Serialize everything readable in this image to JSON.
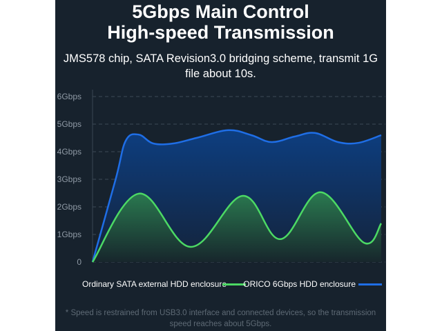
{
  "header": {
    "title_line1": "5Gbps Main Control",
    "title_line2": "High-speed Transmission",
    "subtitle": "JMS578 chip, SATA Revision3.0 bridging scheme, transmit 1G file about 10s."
  },
  "footnote": "* Speed is restrained from USB3.0 interface and connected devices, so the transmission speed reaches about 5Gbps.",
  "colors": {
    "background": "#17222d",
    "orico": "#1f6ee6",
    "ordinary": "#4cd964"
  },
  "chart_data": {
    "type": "area",
    "title": "",
    "xlabel": "",
    "ylabel": "",
    "ylim": [
      0,
      6
    ],
    "yticks": [
      {
        "value": 0,
        "label": "0"
      },
      {
        "value": 1,
        "label": "1Gbps"
      },
      {
        "value": 2,
        "label": "2Gbps"
      },
      {
        "value": 3,
        "label": "3Gbps"
      },
      {
        "value": 4,
        "label": "4Gbps"
      },
      {
        "value": 5,
        "label": "5Gbps"
      },
      {
        "value": 6,
        "label": "6Gbps"
      }
    ],
    "xlim": [
      0,
      100
    ],
    "grid": true,
    "legend_position": "bottom-right",
    "series": [
      {
        "name": "ORICO 6Gbps HDD enclosure",
        "color": "#1f6ee6",
        "x": [
          0,
          8,
          11.5,
          16,
          21,
          28,
          36,
          47,
          55,
          62,
          70,
          77,
          85,
          92,
          100
        ],
        "y": [
          0,
          3.0,
          4.4,
          4.62,
          4.3,
          4.3,
          4.5,
          4.78,
          4.6,
          4.35,
          4.55,
          4.68,
          4.35,
          4.32,
          4.6
        ]
      },
      {
        "name": "Ordinary SATA external HDD enclosure",
        "color": "#4cd964",
        "x": [
          0,
          16,
          34,
          52,
          65,
          79,
          94,
          100
        ],
        "y": [
          0,
          2.48,
          0.55,
          2.4,
          0.83,
          2.53,
          0.7,
          1.4
        ]
      }
    ]
  }
}
